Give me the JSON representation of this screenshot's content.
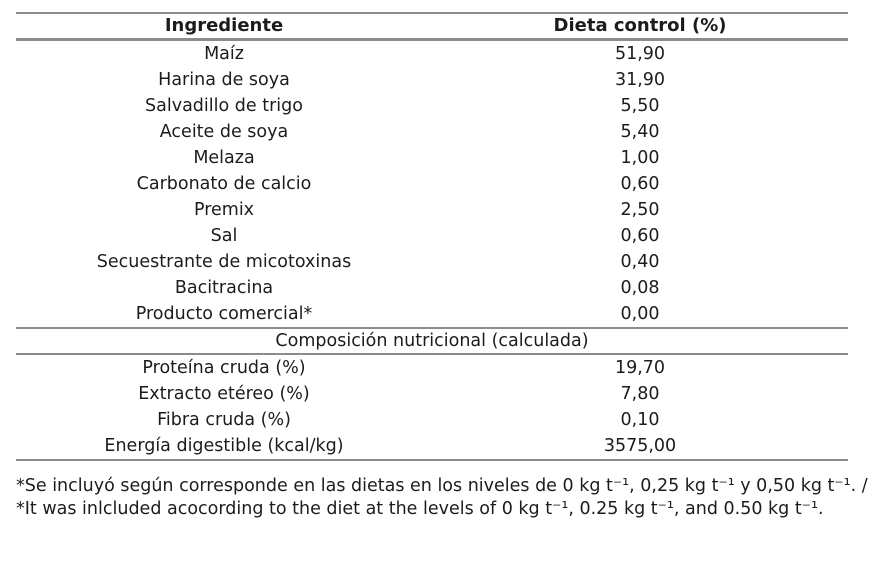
{
  "style": {
    "text_color": "#1c1c1c",
    "rule_color": "#8c8c8c",
    "background_color": "#ffffff"
  },
  "table": {
    "columns": [
      "Ingrediente",
      "Dieta control (%)"
    ],
    "ingredients": [
      {
        "name": "Maíz",
        "value": "51,90"
      },
      {
        "name": "Harina de soya",
        "value": "31,90"
      },
      {
        "name": "Salvadillo de trigo",
        "value": "5,50"
      },
      {
        "name": "Aceite de soya",
        "value": "5,40"
      },
      {
        "name": "Melaza",
        "value": "1,00"
      },
      {
        "name": "Carbonato de calcio",
        "value": "0,60"
      },
      {
        "name": "Premix",
        "value": "2,50"
      },
      {
        "name": "Sal",
        "value": "0,60"
      },
      {
        "name": "Secuestrante de micotoxinas",
        "value": "0,40"
      },
      {
        "name": "Bacitracina",
        "value": "0,08"
      },
      {
        "name": "Producto comercial*",
        "value": "0,00"
      }
    ],
    "section_header": "Composición nutricional (calculada)",
    "nutrition": [
      {
        "name": "Proteína cruda (%)",
        "value": "19,70"
      },
      {
        "name": "Extracto etéreo (%)",
        "value": "7,80"
      },
      {
        "name": "Fibra cruda (%)",
        "value": "0,10"
      },
      {
        "name": "Energía digestible (kcal/kg)",
        "value": "3575,00"
      }
    ]
  },
  "footnote": {
    "text": "*Se incluyó según corresponde en las dietas en los niveles de 0 kg t⁻¹, 0,25 kg t⁻¹ y 0,50 kg t⁻¹. / *It was inlcluded acocording to the diet at the levels of 0 kg t⁻¹, 0.25 kg t⁻¹, and 0.50 kg t⁻¹."
  }
}
